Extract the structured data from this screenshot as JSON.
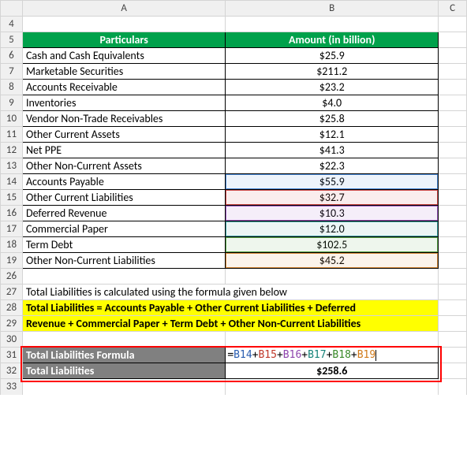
{
  "columns": {
    "A": "A",
    "B": "B",
    "C": "C"
  },
  "rows": [
    "4",
    "5",
    "6",
    "7",
    "8",
    "9",
    "10",
    "11",
    "12",
    "13",
    "14",
    "15",
    "16",
    "17",
    "18",
    "19",
    "26",
    "27",
    "28",
    "29",
    "30",
    "31",
    "32",
    "33"
  ],
  "header": {
    "particulars": "Particulars",
    "amount": "Amount (in billion)"
  },
  "items": [
    {
      "label": "Cash and Cash Equivalents",
      "value": "$25.9"
    },
    {
      "label": "Marketable Securities",
      "value": "$211.2"
    },
    {
      "label": "Accounts Receivable",
      "value": "$23.2"
    },
    {
      "label": "Inventories",
      "value": "$4.0"
    },
    {
      "label": "Vendor Non-Trade Receivables",
      "value": "$25.8"
    },
    {
      "label": "Other Current Assets",
      "value": "$12.1"
    },
    {
      "label": "Net PPE",
      "value": "$41.3"
    },
    {
      "label": "Other Non-Current Assets",
      "value": "$22.3"
    },
    {
      "label": "Accounts Payable",
      "value": "$55.9",
      "hl": "blue"
    },
    {
      "label": "Other Current Liabilities",
      "value": "$32.7",
      "hl": "red"
    },
    {
      "label": "Deferred Revenue",
      "value": "$10.3",
      "hl": "purple"
    },
    {
      "label": "Commercial Paper",
      "value": "$12.0",
      "hl": "teal"
    },
    {
      "label": "Term Debt",
      "value": "$102.5",
      "hl": "green"
    },
    {
      "label": "Other Non-Current Liabilities",
      "value": "$45.2",
      "hl": "orange"
    }
  ],
  "note": "Total Liabilities is calculated using the formula given below",
  "formula_text1": "Total Liabilities = Accounts Payable + Other Current Liabilities + Deferred",
  "formula_text2": "Revenue + Commercial Paper + Term Debt + Other Non-Current Liabilities",
  "result_label1": "Total Liabilities Formula",
  "result_formula_parts": [
    {
      "t": "=",
      "c": ""
    },
    {
      "t": "B14",
      "c": "f-blue"
    },
    {
      "t": "+",
      "c": ""
    },
    {
      "t": "B15",
      "c": "f-red"
    },
    {
      "t": "+",
      "c": ""
    },
    {
      "t": "B16",
      "c": "f-purple"
    },
    {
      "t": "+",
      "c": ""
    },
    {
      "t": "B17",
      "c": "f-teal"
    },
    {
      "t": "+",
      "c": ""
    },
    {
      "t": "B18",
      "c": "f-green"
    },
    {
      "t": "+",
      "c": ""
    },
    {
      "t": "B19",
      "c": "f-orange"
    }
  ],
  "result_label2": "Total Liabilities",
  "result_value": "$258.6",
  "colors": {
    "header_bg": "#00a14b",
    "highlight_bg": "#ffff00",
    "grid": "#d4d4d4",
    "rowcol_bg": "#f0f0f0",
    "result_bg": "#808080",
    "outline": "#ff0000"
  }
}
